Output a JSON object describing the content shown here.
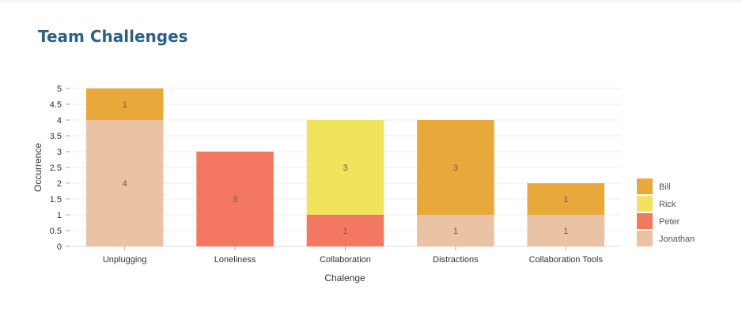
{
  "title": "Team Challenges",
  "chart_data": {
    "type": "bar",
    "stacked": true,
    "title": "Team Challenges",
    "xlabel": "Chalenge",
    "ylabel": "Occurrence",
    "ylim": [
      0,
      5
    ],
    "yticks": [
      "0",
      "0.5",
      "1",
      "1.5",
      "2",
      "2.5",
      "3",
      "3.5",
      "4",
      "4.5",
      "5"
    ],
    "grid": true,
    "legend_position": "right",
    "categories": [
      "Unplugging",
      "Loneliness",
      "Collaboration",
      "Distractions",
      "Collaboration Tools"
    ],
    "series": [
      {
        "name": "Jonathan",
        "color": "#E9C3A4",
        "values": [
          4,
          0,
          0,
          1,
          1
        ]
      },
      {
        "name": "Peter",
        "color": "#F47762",
        "values": [
          0,
          3,
          1,
          0,
          0
        ]
      },
      {
        "name": "Rick",
        "color": "#F2E35C",
        "values": [
          0,
          0,
          3,
          0,
          0
        ]
      },
      {
        "name": "Bill",
        "color": "#E9A93A",
        "values": [
          1,
          0,
          0,
          3,
          1
        ]
      }
    ],
    "legend_order": [
      "Bill",
      "Rick",
      "Peter",
      "Jonathan"
    ]
  }
}
